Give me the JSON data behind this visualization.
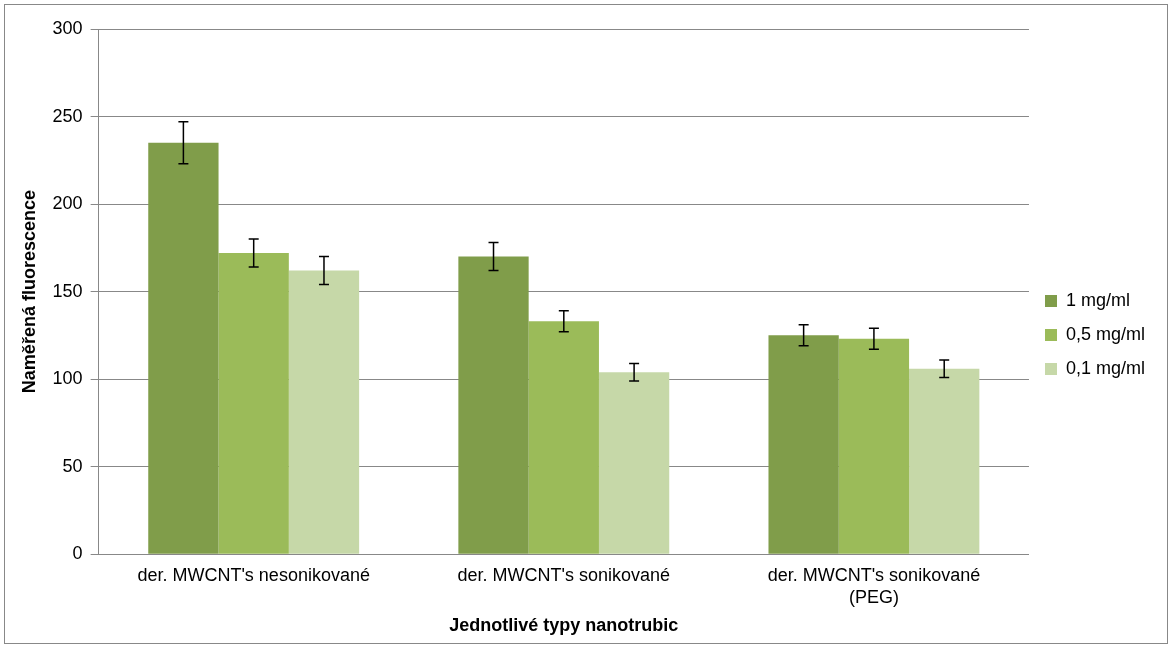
{
  "chart_data": {
    "type": "bar",
    "xlabel": "Jednotlivé typy nanotrubic",
    "ylabel": "Naměřená fluorescence",
    "categories": [
      "der. MWCNT's nesonikované",
      "der. MWCNT's sonikované",
      "der. MWCNT's sonikované (PEG)"
    ],
    "series": [
      {
        "name": "1 mg/ml",
        "color": "#809d4a",
        "values": [
          235,
          170,
          125
        ],
        "errors": [
          12,
          8,
          6
        ]
      },
      {
        "name": "0,5 mg/ml",
        "color": "#9bbb59",
        "values": [
          172,
          133,
          123
        ],
        "errors": [
          8,
          6,
          6
        ]
      },
      {
        "name": "0,1 mg/ml",
        "color": "#c6d8a8",
        "values": [
          162,
          104,
          106
        ],
        "errors": [
          8,
          5,
          5
        ]
      }
    ],
    "ylim": [
      0,
      300
    ],
    "yticks": [
      0,
      50,
      100,
      150,
      200,
      250,
      300
    ],
    "grid": "y",
    "legend": "right"
  }
}
